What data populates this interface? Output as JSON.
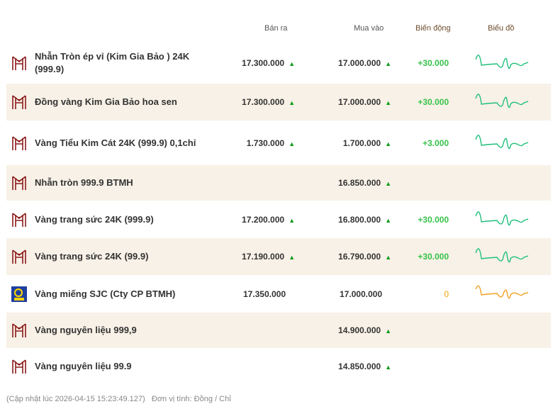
{
  "headers": {
    "sell": "Bán ra",
    "buy": "Mua vào",
    "change": "Biến động",
    "chart": "Biểu đồ"
  },
  "colors": {
    "up": "#109b1a",
    "change_up": "#36c24a",
    "change_flat": "#f0a500",
    "spark_up": "#1fbf7a",
    "spark_flat": "#f0a020",
    "brand": "#8b1a1a",
    "alt_row": "#f8f1e7"
  },
  "rows": [
    {
      "icon": "btmh-logo",
      "name": "Nhẫn Tròn ép vỉ (Kim Gia Bảo ) 24K (999.9)",
      "sell": "17.300.000",
      "sell_up": true,
      "buy": "17.000.000",
      "buy_up": true,
      "change": "+30.000",
      "trend": "up"
    },
    {
      "icon": "btmh-logo",
      "name": "Đồng vàng Kim Gia Bảo hoa sen",
      "sell": "17.300.000",
      "sell_up": true,
      "buy": "17.000.000",
      "buy_up": true,
      "change": "+30.000",
      "trend": "up"
    },
    {
      "icon": "btmh-logo",
      "name": "Vàng Tiểu Kim Cát 24K (999.9) 0,1chỉ",
      "sell": "1.730.000",
      "sell_up": true,
      "buy": "1.700.000",
      "buy_up": true,
      "change": "+3.000",
      "trend": "up"
    },
    {
      "icon": "btmh-logo",
      "name": "Nhẫn tròn 999.9 BTMH",
      "sell": "",
      "sell_up": false,
      "buy": "16.850.000",
      "buy_up": true,
      "change": "",
      "trend": ""
    },
    {
      "icon": "btmh-logo",
      "name": "Vàng trang sức 24K (999.9)",
      "sell": "17.200.000",
      "sell_up": true,
      "buy": "16.800.000",
      "buy_up": true,
      "change": "+30.000",
      "trend": "up"
    },
    {
      "icon": "btmh-logo",
      "name": "Vàng trang sức 24K (99.9)",
      "sell": "17.190.000",
      "sell_up": true,
      "buy": "16.790.000",
      "buy_up": true,
      "change": "+30.000",
      "trend": "up"
    },
    {
      "icon": "sjc-logo",
      "name": "Vàng miếng SJC (Cty CP BTMH)",
      "sell": "17.350.000",
      "sell_up": false,
      "buy": "17.000.000",
      "buy_up": false,
      "change": "0",
      "trend": "flat"
    },
    {
      "icon": "btmh-logo",
      "name": "Vàng nguyên liệu 999,9",
      "sell": "",
      "sell_up": false,
      "buy": "14.900.000",
      "buy_up": true,
      "change": "",
      "trend": ""
    },
    {
      "icon": "btmh-logo",
      "name": "Vàng nguyên liệu 99.9",
      "sell": "",
      "sell_up": false,
      "buy": "14.850.000",
      "buy_up": true,
      "change": "",
      "trend": ""
    }
  ],
  "footer": {
    "updated": "(Cập nhật lúc 2026-04-15 15:23:49.127)",
    "unit": "Đơn vị tính: Đồng / Chỉ"
  }
}
